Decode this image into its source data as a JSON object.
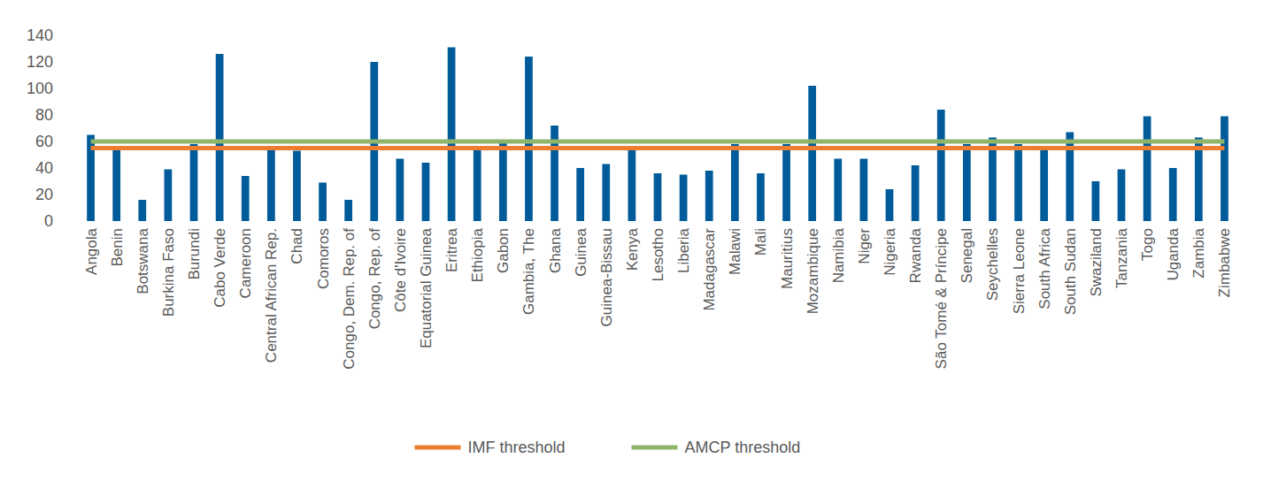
{
  "chart_data": {
    "type": "bar",
    "categories": [
      "Angola",
      "Benin",
      "Botswana",
      "Burkina Faso",
      "Burundi",
      "Cabo Verde",
      "Cameroon",
      "Central African Rep.",
      "Chad",
      "Comoros",
      "Congo, Dem. Rep. of",
      "Congo, Rep. of",
      "Côte d'Ivoire",
      "Equatorial Guinea",
      "Eritrea",
      "Ethiopia",
      "Gabon",
      "Gambia, The",
      "Ghana",
      "Guinea",
      "Guinea-Bissau",
      "Kenya",
      "Lesotho",
      "Liberia",
      "Madagascar",
      "Malawi",
      "Mali",
      "Mauritius",
      "Mozambique",
      "Namibia",
      "Niger",
      "Nigeria",
      "Rwanda",
      "São Tomé & Príncipe",
      "Senegal",
      "Seychelles",
      "Sierra Leone",
      "South Africa",
      "South Sudan",
      "Swaziland",
      "Tanzania",
      "Togo",
      "Uganda",
      "Zambia",
      "Zimbabwe"
    ],
    "series": [
      {
        "type": "bar",
        "color": "#005b9a",
        "values": [
          65,
          55,
          16,
          39,
          58,
          126,
          34,
          55,
          53,
          29,
          16,
          120,
          47,
          44,
          131,
          55,
          60,
          124,
          72,
          40,
          43,
          54,
          36,
          35,
          38,
          58,
          36,
          58,
          102,
          47,
          47,
          24,
          42,
          84,
          58,
          63,
          58,
          54,
          67,
          30,
          39,
          79,
          40,
          63,
          79
        ]
      },
      {
        "name": "IMF threshold",
        "type": "line",
        "color": "#ed7d31",
        "values": [
          55,
          55,
          55,
          55,
          55,
          55,
          55,
          55,
          55,
          55,
          55,
          55,
          55,
          55,
          55,
          55,
          55,
          55,
          55,
          55,
          55,
          55,
          55,
          55,
          55,
          55,
          55,
          55,
          55,
          55,
          55,
          55,
          55,
          55,
          55,
          55,
          55,
          55,
          55,
          55,
          55,
          55,
          55,
          55,
          55
        ]
      },
      {
        "name": "AMCP threshold",
        "type": "line",
        "color": "#8fb56b",
        "values": [
          60,
          60,
          60,
          60,
          60,
          60,
          60,
          60,
          60,
          60,
          60,
          60,
          60,
          60,
          60,
          60,
          60,
          60,
          60,
          60,
          60,
          60,
          60,
          60,
          60,
          60,
          60,
          60,
          60,
          60,
          60,
          60,
          60,
          60,
          60,
          60,
          60,
          60,
          60,
          60,
          60,
          60,
          60,
          60,
          60
        ]
      }
    ],
    "ylim": [
      0,
      140
    ],
    "yticks": [
      0,
      20,
      40,
      60,
      80,
      100,
      120,
      140
    ],
    "grid": false,
    "legend": "bottom"
  }
}
